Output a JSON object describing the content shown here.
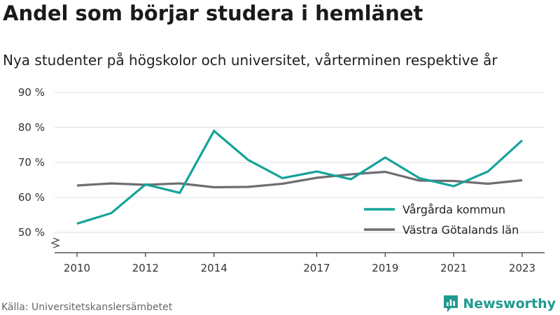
{
  "title": "Andel som börjar studera i hemlänet",
  "subtitle": "Nya studenter på högskolor och universitet, vårterminen respektive år",
  "source": "Källa: Universitetskanslersämbetet",
  "brand": {
    "name": "Newsworthy",
    "icon": "newsworthy-logo-icon",
    "color": "#1f9a8f"
  },
  "chart_data": {
    "type": "line",
    "x": [
      2010,
      2011,
      2012,
      2013,
      2014,
      2015,
      2016,
      2017,
      2018,
      2019,
      2020,
      2021,
      2022,
      2023
    ],
    "x_ticks": [
      2010,
      2012,
      2014,
      2017,
      2019,
      2021,
      2023
    ],
    "x_tick_labels": [
      "2010",
      "2012",
      "2014",
      "2017",
      "2019",
      "2021",
      "2023"
    ],
    "xlim": [
      2010,
      2023
    ],
    "ylim": [
      50,
      90
    ],
    "y_ticks": [
      50,
      60,
      70,
      80,
      90
    ],
    "y_tick_labels": [
      "50 %",
      "60 %",
      "70 %",
      "80 %",
      "90 %"
    ],
    "y_axis_break": true,
    "grid": "horizontal",
    "legend_position": "bottom-right",
    "series": [
      {
        "name": "Vårgårda kommun",
        "color": "#14a39a",
        "values": [
          52.5,
          55.5,
          63.7,
          61.3,
          79.0,
          70.7,
          65.5,
          67.4,
          65.2,
          71.4,
          65.5,
          63.2,
          67.4,
          76.3
        ]
      },
      {
        "name": "Västra Götalands län",
        "color": "#6e6d73",
        "values": [
          63.4,
          64.0,
          63.6,
          64.0,
          62.9,
          63.0,
          63.9,
          65.6,
          66.6,
          67.3,
          64.8,
          64.7,
          63.9,
          64.9
        ]
      }
    ]
  }
}
